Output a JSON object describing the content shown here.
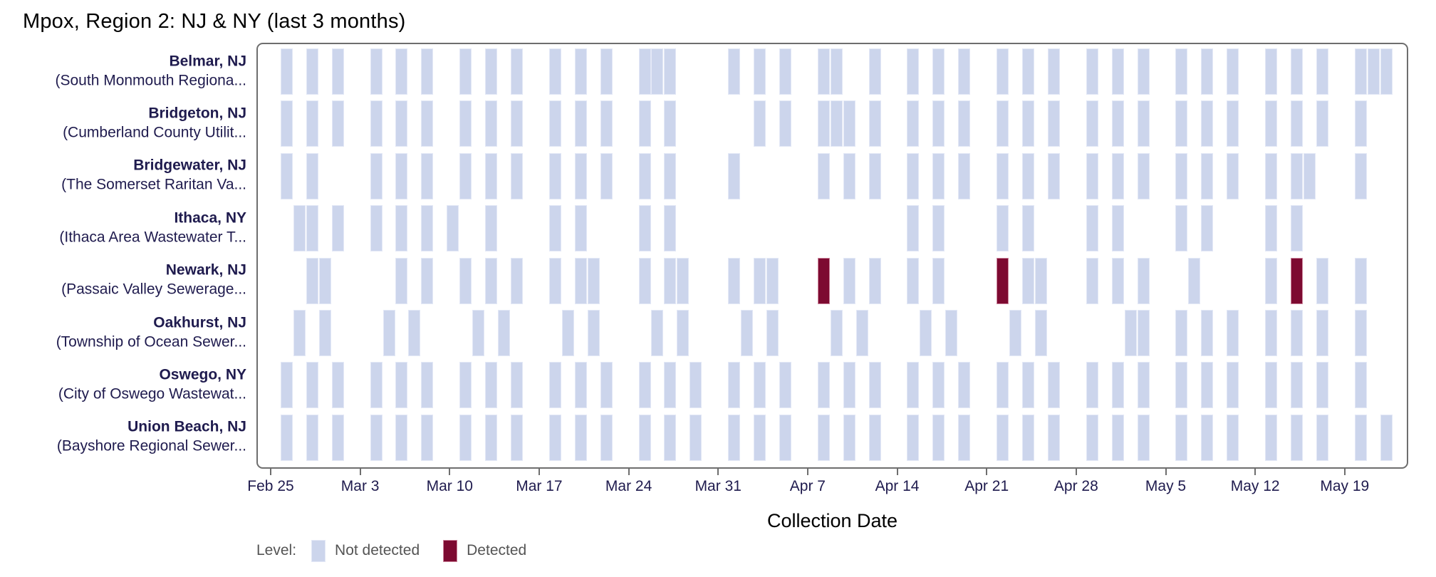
{
  "title": "Mpox, Region 2: NJ & NY (last 3 months)",
  "x_axis_title": "Collection Date",
  "legend": {
    "title": "Level:",
    "not_detected_label": "Not detected",
    "detected_label": "Detected"
  },
  "colors": {
    "not_detected": "#ccd5ec",
    "detected": "#7d0a31",
    "label_text": "#1f1b4e",
    "legend_text": "#545454",
    "plot_border": "#6e6e6e"
  },
  "chart_data": {
    "type": "heatmap",
    "title": "Mpox, Region 2: NJ & NY (last 3 months)",
    "xlabel": "Collection Date",
    "x_axis": {
      "tick_labels": [
        "Feb 25",
        "Mar 3",
        "Mar 10",
        "Mar 17",
        "Mar 24",
        "Mar 31",
        "Apr 7",
        "Apr 14",
        "Apr 21",
        "Apr 28",
        "May 5",
        "May 12",
        "May 19"
      ],
      "tick_interval_days": 7,
      "domain_days_relative_to_first_tick": [
        -1.1,
        88.9
      ]
    },
    "legend_position": "bottom-left",
    "grid": false,
    "series": [
      {
        "site": "Belmar, NJ",
        "facility": "(South Monmouth Regiona...",
        "not_detected": [
          "Feb 26",
          "Feb 28",
          "Mar 1",
          "Mar 4",
          "Mar 6",
          "Mar 8",
          "Mar 11",
          "Mar 13",
          "Mar 15",
          "Mar 18",
          "Mar 20",
          "Mar 22",
          "Mar 25",
          "Mar 26",
          "Mar 27",
          "Apr 1",
          "Apr 3",
          "Apr 5",
          "Apr 8",
          "Apr 9",
          "Apr 12",
          "Apr 15",
          "Apr 17",
          "Apr 19",
          "Apr 22",
          "Apr 24",
          "Apr 26",
          "Apr 29",
          "May 1",
          "May 3",
          "May 6",
          "May 8",
          "May 10",
          "May 13",
          "May 15",
          "May 17",
          "May 20",
          "May 21",
          "May 22"
        ],
        "detected": []
      },
      {
        "site": "Bridgeton, NJ",
        "facility": "(Cumberland County Utilit...",
        "not_detected": [
          "Feb 26",
          "Feb 28",
          "Mar 1",
          "Mar 4",
          "Mar 6",
          "Mar 8",
          "Mar 11",
          "Mar 13",
          "Mar 15",
          "Mar 18",
          "Mar 20",
          "Mar 22",
          "Mar 25",
          "Mar 27",
          "Apr 3",
          "Apr 5",
          "Apr 8",
          "Apr 9",
          "Apr 10",
          "Apr 12",
          "Apr 15",
          "Apr 17",
          "Apr 19",
          "Apr 22",
          "Apr 24",
          "Apr 26",
          "Apr 29",
          "May 1",
          "May 3",
          "May 6",
          "May 8",
          "May 10",
          "May 13",
          "May 15",
          "May 17",
          "May 20"
        ],
        "detected": []
      },
      {
        "site": "Bridgewater, NJ",
        "facility": "(The Somerset Raritan Va...",
        "not_detected": [
          "Feb 26",
          "Feb 28",
          "Mar 4",
          "Mar 6",
          "Mar 8",
          "Mar 11",
          "Mar 13",
          "Mar 15",
          "Mar 18",
          "Mar 20",
          "Mar 22",
          "Mar 25",
          "Mar 27",
          "Apr 1",
          "Apr 8",
          "Apr 10",
          "Apr 12",
          "Apr 15",
          "Apr 17",
          "Apr 19",
          "Apr 22",
          "Apr 24",
          "Apr 26",
          "Apr 29",
          "May 1",
          "May 3",
          "May 6",
          "May 8",
          "May 10",
          "May 13",
          "May 15",
          "May 16",
          "May 20"
        ],
        "detected": []
      },
      {
        "site": "Ithaca, NY",
        "facility": "(Ithaca Area Wastewater T...",
        "not_detected": [
          "Feb 27",
          "Feb 28",
          "Mar 1",
          "Mar 4",
          "Mar 6",
          "Mar 8",
          "Mar 10",
          "Mar 13",
          "Mar 18",
          "Mar 20",
          "Mar 25",
          "Mar 27",
          "Apr 15",
          "Apr 17",
          "Apr 22",
          "Apr 24",
          "Apr 29",
          "May 1",
          "May 6",
          "May 8",
          "May 13",
          "May 15"
        ],
        "detected": []
      },
      {
        "site": "Newark, NJ",
        "facility": "(Passaic Valley Sewerage...",
        "not_detected": [
          "Feb 28",
          "Feb 29",
          "Mar 6",
          "Mar 8",
          "Mar 11",
          "Mar 13",
          "Mar 15",
          "Mar 18",
          "Mar 20",
          "Mar 21",
          "Mar 25",
          "Mar 27",
          "Mar 28",
          "Apr 1",
          "Apr 3",
          "Apr 4",
          "Apr 10",
          "Apr 12",
          "Apr 15",
          "Apr 17",
          "Apr 24",
          "Apr 25",
          "Apr 29",
          "May 1",
          "May 3",
          "May 7",
          "May 13",
          "May 17",
          "May 20"
        ],
        "detected": [
          "Apr 8",
          "Apr 22",
          "May 15"
        ]
      },
      {
        "site": "Oakhurst, NJ",
        "facility": "(Township of Ocean Sewer...",
        "not_detected": [
          "Feb 27",
          "Feb 29",
          "Mar 5",
          "Mar 7",
          "Mar 12",
          "Mar 14",
          "Mar 19",
          "Mar 21",
          "Mar 26",
          "Mar 28",
          "Apr 2",
          "Apr 4",
          "Apr 9",
          "Apr 11",
          "Apr 16",
          "Apr 18",
          "Apr 23",
          "Apr 25",
          "May 2",
          "May 3",
          "May 6",
          "May 8",
          "May 10",
          "May 13",
          "May 15",
          "May 17",
          "May 20"
        ],
        "detected": []
      },
      {
        "site": "Oswego, NY",
        "facility": "(City of Oswego Wastewat...",
        "not_detected": [
          "Feb 26",
          "Feb 28",
          "Mar 1",
          "Mar 4",
          "Mar 6",
          "Mar 8",
          "Mar 11",
          "Mar 13",
          "Mar 15",
          "Mar 18",
          "Mar 20",
          "Mar 22",
          "Mar 25",
          "Mar 27",
          "Mar 29",
          "Apr 1",
          "Apr 3",
          "Apr 5",
          "Apr 8",
          "Apr 10",
          "Apr 12",
          "Apr 15",
          "Apr 17",
          "Apr 19",
          "Apr 22",
          "Apr 24",
          "Apr 26",
          "Apr 29",
          "May 1",
          "May 3",
          "May 6",
          "May 8",
          "May 10",
          "May 13",
          "May 15",
          "May 17",
          "May 20"
        ],
        "detected": []
      },
      {
        "site": "Union Beach, NJ",
        "facility": "(Bayshore Regional Sewer...",
        "not_detected": [
          "Feb 26",
          "Feb 28",
          "Mar 1",
          "Mar 4",
          "Mar 6",
          "Mar 8",
          "Mar 11",
          "Mar 13",
          "Mar 15",
          "Mar 18",
          "Mar 20",
          "Mar 22",
          "Mar 25",
          "Mar 27",
          "Mar 29",
          "Apr 1",
          "Apr 3",
          "Apr 5",
          "Apr 8",
          "Apr 10",
          "Apr 12",
          "Apr 15",
          "Apr 17",
          "Apr 19",
          "Apr 22",
          "Apr 24",
          "Apr 26",
          "Apr 29",
          "May 1",
          "May 3",
          "May 6",
          "May 8",
          "May 10",
          "May 13",
          "May 15",
          "May 17",
          "May 20",
          "May 22"
        ],
        "detected": []
      }
    ]
  }
}
